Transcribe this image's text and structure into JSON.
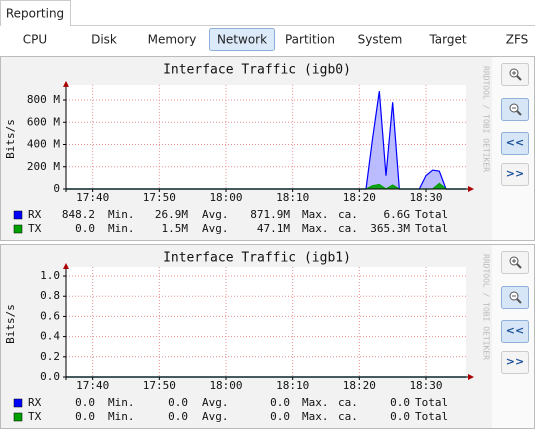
{
  "tabs": {
    "main": "Reporting",
    "items": [
      "CPU",
      "Disk",
      "Memory",
      "Network",
      "Partition",
      "System",
      "Target",
      "ZFS"
    ],
    "active": 3
  },
  "watermark": "RRDTOOL / TOBI OETIKER",
  "buttons": [
    "<<",
    ">>"
  ],
  "chart_data": [
    {
      "type": "area",
      "title": "Interface Traffic (igb0)",
      "y_label": "Bits/s",
      "xlim": [
        "17:36",
        "18:36"
      ],
      "xticks": [
        "17:40",
        "17:50",
        "18:00",
        "18:10",
        "18:20",
        "18:30"
      ],
      "ylim": [
        0,
        900000000
      ],
      "yticks": [
        {
          "value": 0,
          "label": "0"
        },
        {
          "value": 200000000,
          "label": "200 M"
        },
        {
          "value": 400000000,
          "label": "400 M"
        },
        {
          "value": 600000000,
          "label": "600 M"
        },
        {
          "value": 800000000,
          "label": "800 M"
        }
      ],
      "grid": true,
      "series": [
        {
          "name": "RX",
          "color": "#0000ff",
          "fill": "#b4b4ff",
          "x": [
            "17:36",
            "18:21",
            "18:22",
            "18:23",
            "18:24",
            "18:25",
            "18:26",
            "18:29",
            "18:30",
            "18:31",
            "18:32",
            "18:33",
            "18:36"
          ],
          "values": [
            0,
            0,
            460000000,
            880000000,
            120000000,
            780000000,
            0,
            0,
            120000000,
            170000000,
            160000000,
            0,
            0
          ],
          "stats": [
            "848.2",
            "Min.",
            "26.9M",
            "Avg.",
            "871.9M",
            "Max.",
            "ca.",
            "6.6G",
            "Total"
          ]
        },
        {
          "name": "TX",
          "color": "#00a000",
          "fill": "#00a000",
          "x": [
            "17:36",
            "18:21",
            "18:22",
            "18:23",
            "18:24",
            "18:25",
            "18:26",
            "18:31",
            "18:32",
            "18:33",
            "18:36"
          ],
          "values": [
            0,
            0,
            30000000,
            40000000,
            0,
            35000000,
            0,
            0,
            50000000,
            0,
            0
          ],
          "stats": [
            "0.0",
            "Min.",
            "1.5M",
            "Avg.",
            "47.1M",
            "Max.",
            "ca.",
            "365.3M",
            "Total"
          ]
        }
      ]
    },
    {
      "type": "area",
      "title": "Interface Traffic (igb1)",
      "y_label": "Bits/s",
      "xlim": [
        "17:36",
        "18:36"
      ],
      "xticks": [
        "17:40",
        "17:50",
        "18:00",
        "18:10",
        "18:20",
        "18:30"
      ],
      "ylim": [
        0,
        1.05
      ],
      "yticks": [
        {
          "value": 0,
          "label": "0.0"
        },
        {
          "value": 0.2,
          "label": "0.2"
        },
        {
          "value": 0.4,
          "label": "0.4"
        },
        {
          "value": 0.6,
          "label": "0.6"
        },
        {
          "value": 0.8,
          "label": "0.8"
        },
        {
          "value": 1,
          "label": "1.0"
        }
      ],
      "grid": true,
      "series": [
        {
          "name": "RX",
          "color": "#0000ff",
          "fill": "#b4b4ff",
          "x": [
            "17:36",
            "18:36"
          ],
          "values": [
            0,
            0
          ],
          "stats": [
            "0.0",
            "Min.",
            "0.0",
            "Avg.",
            "0.0",
            "Max.",
            "ca.",
            "0.0",
            "Total"
          ]
        },
        {
          "name": "TX",
          "color": "#00a000",
          "fill": "#00a000",
          "x": [
            "17:36",
            "18:36"
          ],
          "values": [
            0,
            0
          ],
          "stats": [
            "0.0",
            "Min.",
            "0.0",
            "Avg.",
            "0.0",
            "Max.",
            "ca.",
            "0.0",
            "Total"
          ]
        }
      ]
    }
  ]
}
